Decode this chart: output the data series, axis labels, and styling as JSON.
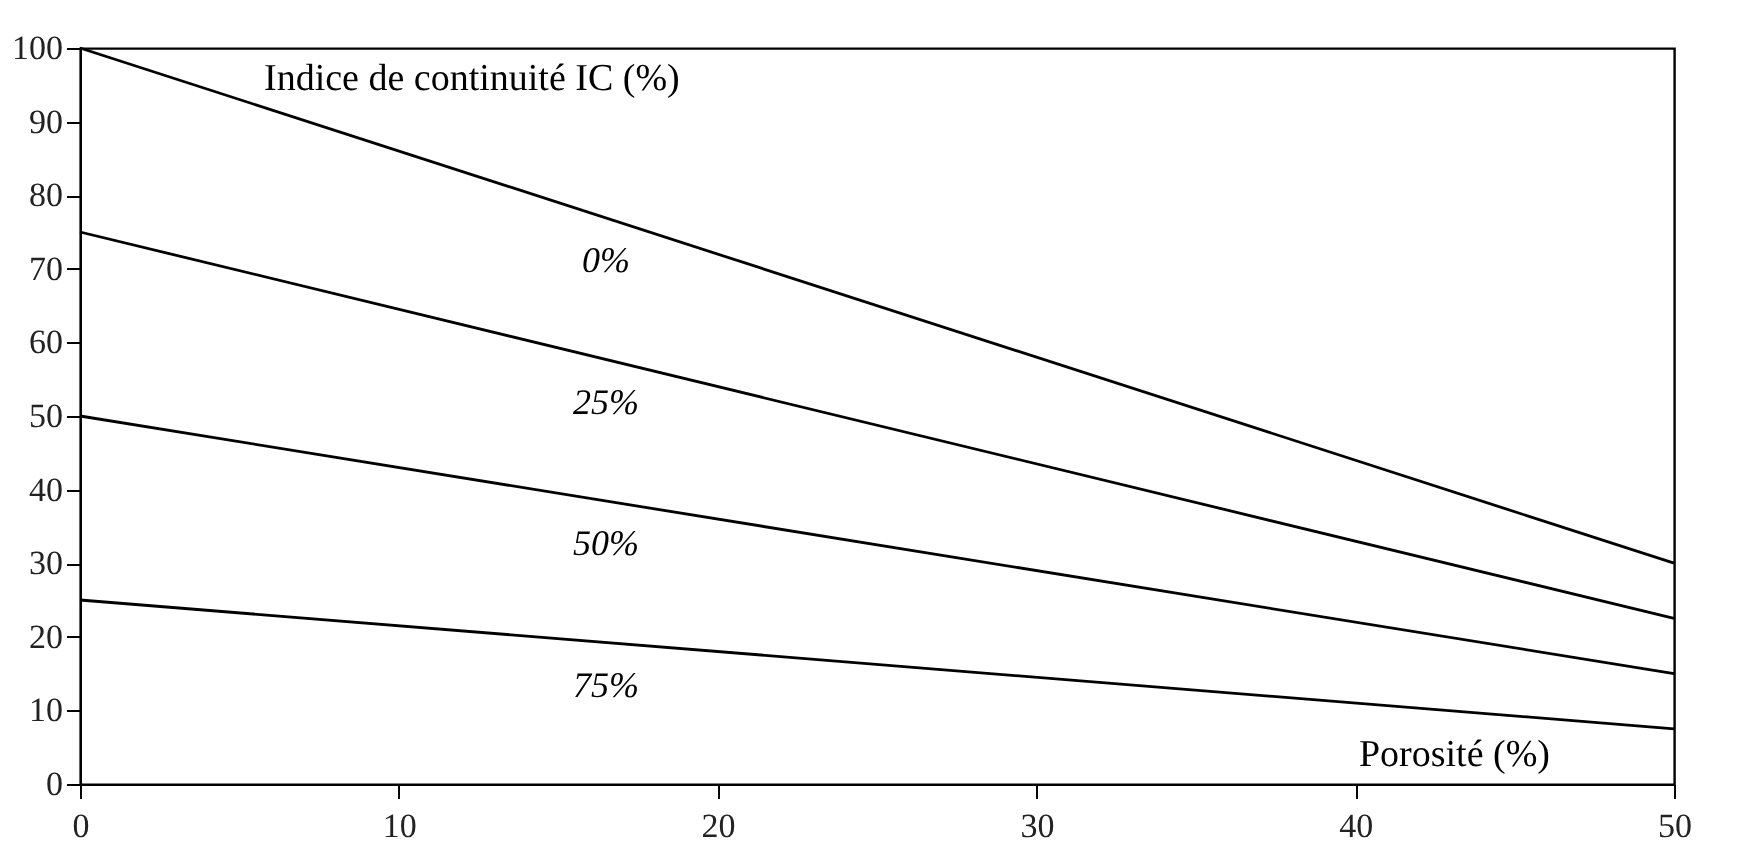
{
  "chart_data": {
    "type": "line",
    "xlabel": "Porosité (%)",
    "ylabel": "Indice de continuité IC (%)",
    "x": [
      0,
      50
    ],
    "series": [
      {
        "name": "0%",
        "color": "#000000",
        "values": [
          100,
          30
        ]
      },
      {
        "name": "25%",
        "color": "#000000",
        "values": [
          75,
          22.5
        ]
      },
      {
        "name": "50%",
        "color": "#000000",
        "values": [
          50,
          15
        ]
      },
      {
        "name": "75%",
        "color": "#000000",
        "values": [
          25,
          7.5
        ]
      }
    ],
    "xlim": [
      0,
      50
    ],
    "xticks": [
      0,
      10,
      20,
      30,
      40,
      50
    ],
    "ylim": [
      0,
      100
    ],
    "yticks": [
      0,
      10,
      20,
      30,
      40,
      50,
      60,
      70,
      80,
      90,
      100
    ],
    "grid": false,
    "legend": false,
    "marker": "none",
    "line_style": "solid"
  }
}
